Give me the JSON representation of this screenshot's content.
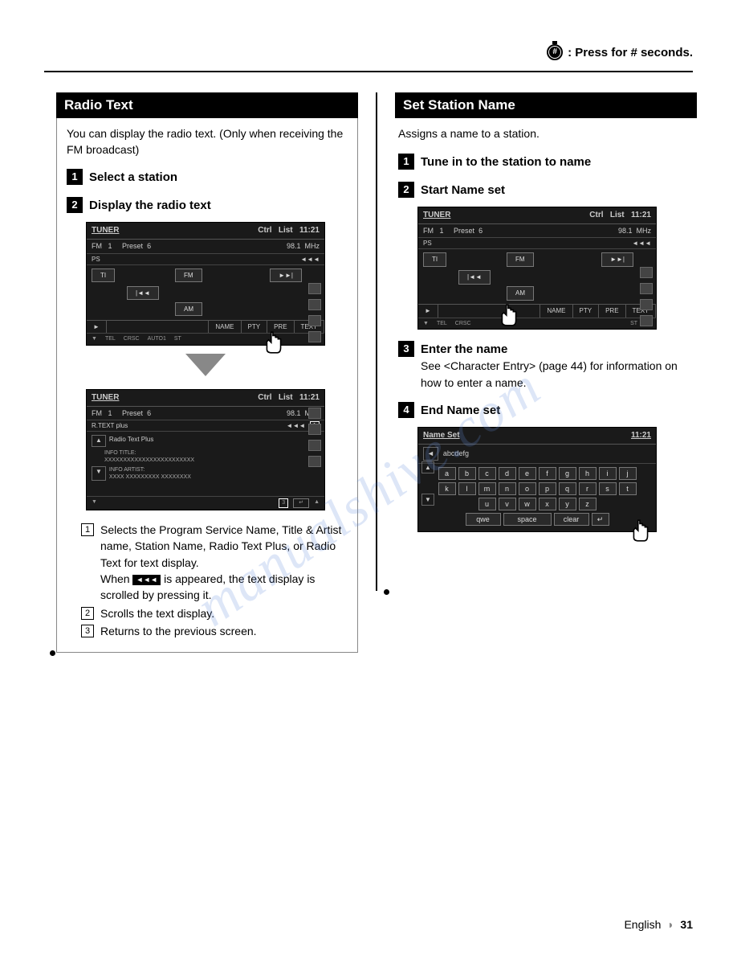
{
  "header": {
    "note": ": Press for # seconds."
  },
  "watermark": "manualshive.com",
  "left": {
    "title": "Radio Text",
    "intro": "You can display the radio text. (Only when receiving the FM broadcast)",
    "steps": [
      {
        "num": "1",
        "label": "Select a station"
      },
      {
        "num": "2",
        "label": "Display the radio text"
      }
    ],
    "tuner": {
      "title_left": "TUNER",
      "ctrl": "Ctrl",
      "list": "List",
      "time": "11:21",
      "band": "FM",
      "band_num": "1",
      "preset": "Preset",
      "preset_num": "6",
      "freq": "98.1",
      "unit": "MHz",
      "ps": "PS",
      "btn_ti": "TI",
      "btn_fm": "FM",
      "btn_am": "AM",
      "btn_prev": "|◄◄",
      "btn_next": "►►|",
      "tab_play": "►",
      "tab_name": "NAME",
      "tab_pty": "PTY",
      "tab_pre": "PRE",
      "tab_text": "TEXT",
      "foot_tel": "TEL",
      "foot_crsc": "CRSC",
      "foot_auto": "AUTO1",
      "foot_st": "ST"
    },
    "textscreen": {
      "mode": "R.TEXT plus",
      "rt_plus": "Radio Text Plus",
      "info_title": "INFO TITLE:",
      "info_title_val": "XXXXXXXXXXXXXXXXXXXXXXXX",
      "info_artist": "INFO ARTIST:",
      "info_artist_val": "XXXX XXXXXXXXX XXXXXXXX",
      "back_num": "3",
      "scroll_icon": "◄◄◄",
      "one_box": "1"
    },
    "notes": [
      {
        "n": "1",
        "t": "Selects the Program Service Name, Title & Artist name, Station Name, Radio Text Plus, or Radio Text for text display."
      },
      {
        "n": "2",
        "t": "Scrolls the text display."
      },
      {
        "n": "3",
        "t": "Returns to the previous screen."
      }
    ],
    "note1_extra_a": "When ",
    "note1_extra_b": " is appeared, the text display is scrolled by pressing it.",
    "scroll_glyph": "◄◄◄"
  },
  "right": {
    "title": "Set Station Name",
    "intro": "Assigns a name to a station.",
    "steps": [
      {
        "num": "1",
        "label": "Tune in to the station to name"
      },
      {
        "num": "2",
        "label": "Start Name set"
      },
      {
        "num": "3",
        "label": "Enter the name"
      },
      {
        "num": "4",
        "label": "End Name set"
      }
    ],
    "step3_text": "See <Character Entry> (page 44) for information on how to enter a name.",
    "keyboard": {
      "title": "Name Set",
      "time": "11:21",
      "input": "abcdefg",
      "rows": [
        [
          "a",
          "b",
          "c",
          "d",
          "e",
          "f",
          "g",
          "h",
          "i",
          "j"
        ],
        [
          "k",
          "l",
          "m",
          "n",
          "o",
          "p",
          "q",
          "r",
          "s",
          "t"
        ],
        [
          "u",
          "v",
          "w",
          "x",
          "y",
          "z"
        ]
      ],
      "bottom": [
        "qwe",
        "space",
        "clear"
      ],
      "back_icon": "↵"
    }
  },
  "footer": {
    "lang": "English",
    "page": "31"
  },
  "colors": {
    "bg": "#ffffff",
    "text": "#000000",
    "screen_bg": "#1a1a1a",
    "screen_text": "#cccccc",
    "watermark": "rgba(100,140,220,0.22)"
  }
}
